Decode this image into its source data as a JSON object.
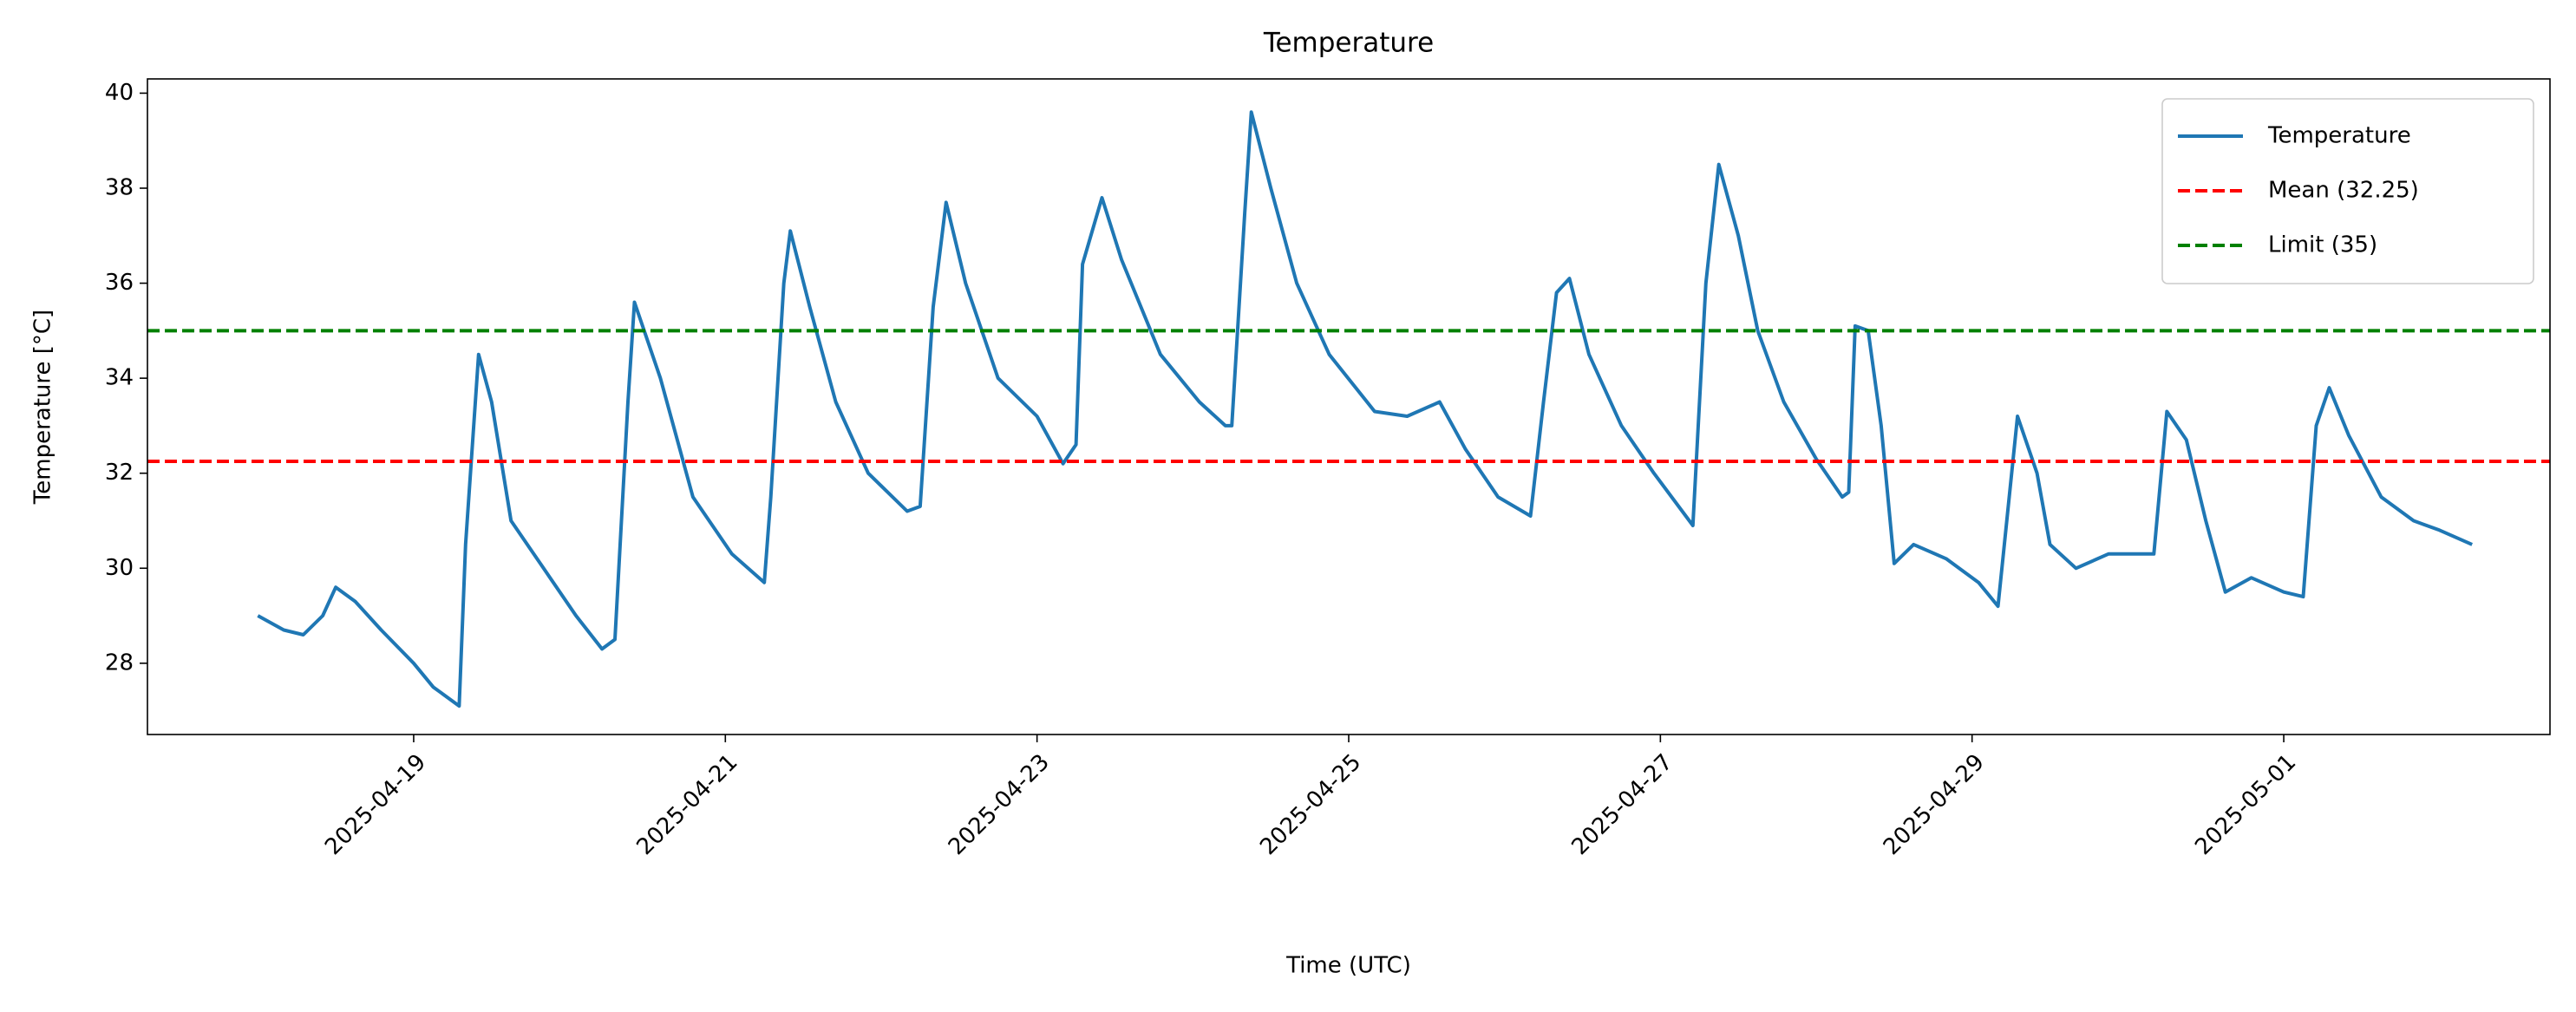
{
  "chart_data": {
    "type": "line",
    "title": "Temperature",
    "x_label": "Time (UTC)",
    "y_label": "Temperature [°C]",
    "x": [
      "2025-04-18T00:00",
      "2025-04-18T04:00",
      "2025-04-18T07:00",
      "2025-04-18T10:00",
      "2025-04-18T12:00",
      "2025-04-18T15:00",
      "2025-04-18T19:00",
      "2025-04-19T00:00",
      "2025-04-19T03:00",
      "2025-04-19T07:00",
      "2025-04-19T08:00",
      "2025-04-19T10:00",
      "2025-04-19T12:00",
      "2025-04-19T15:00",
      "2025-04-19T20:00",
      "2025-04-20T01:00",
      "2025-04-20T05:00",
      "2025-04-20T07:00",
      "2025-04-20T09:00",
      "2025-04-20T10:00",
      "2025-04-20T14:00",
      "2025-04-20T19:00",
      "2025-04-21T01:00",
      "2025-04-21T06:00",
      "2025-04-21T07:00",
      "2025-04-21T09:00",
      "2025-04-21T10:00",
      "2025-04-21T13:00",
      "2025-04-21T17:00",
      "2025-04-21T22:00",
      "2025-04-22T04:00",
      "2025-04-22T06:00",
      "2025-04-22T08:00",
      "2025-04-22T10:00",
      "2025-04-22T13:00",
      "2025-04-22T18:00",
      "2025-04-23T00:00",
      "2025-04-23T04:00",
      "2025-04-23T06:00",
      "2025-04-23T07:00",
      "2025-04-23T10:00",
      "2025-04-23T13:00",
      "2025-04-23T19:00",
      "2025-04-24T01:00",
      "2025-04-24T05:00",
      "2025-04-24T06:00",
      "2025-04-24T08:00",
      "2025-04-24T09:00",
      "2025-04-24T12:00",
      "2025-04-24T16:00",
      "2025-04-24T21:00",
      "2025-04-25T04:00",
      "2025-04-25T09:00",
      "2025-04-25T14:00",
      "2025-04-25T18:00",
      "2025-04-25T23:00",
      "2025-04-26T04:00",
      "2025-04-26T06:00",
      "2025-04-26T08:00",
      "2025-04-26T10:00",
      "2025-04-26T13:00",
      "2025-04-26T18:00",
      "2025-04-26T23:00",
      "2025-04-27T05:00",
      "2025-04-27T07:00",
      "2025-04-27T09:00",
      "2025-04-27T12:00",
      "2025-04-27T15:00",
      "2025-04-27T19:00",
      "2025-04-28T00:00",
      "2025-04-28T04:00",
      "2025-04-28T05:00",
      "2025-04-28T06:00",
      "2025-04-28T08:00",
      "2025-04-28T10:00",
      "2025-04-28T12:00",
      "2025-04-28T15:00",
      "2025-04-28T20:00",
      "2025-04-29T01:00",
      "2025-04-29T04:00",
      "2025-04-29T07:00",
      "2025-04-29T10:00",
      "2025-04-29T12:00",
      "2025-04-29T16:00",
      "2025-04-29T21:00",
      "2025-04-30T04:00",
      "2025-04-30T06:00",
      "2025-04-30T09:00",
      "2025-04-30T12:00",
      "2025-04-30T15:00",
      "2025-04-30T19:00",
      "2025-05-01T00:00",
      "2025-05-01T03:00",
      "2025-05-01T05:00",
      "2025-05-01T07:00",
      "2025-05-01T10:00",
      "2025-05-01T15:00",
      "2025-05-01T20:00",
      "2025-05-02T00:00",
      "2025-05-02T05:00"
    ],
    "series": [
      {
        "name": "Temperature",
        "color": "#1f77b4",
        "values": [
          29.0,
          28.7,
          28.6,
          29.0,
          29.6,
          29.3,
          28.7,
          28.0,
          27.5,
          27.1,
          30.5,
          34.5,
          33.5,
          31.0,
          30.0,
          29.0,
          28.3,
          28.5,
          33.5,
          35.6,
          34.0,
          31.5,
          30.3,
          29.7,
          31.5,
          36.0,
          37.1,
          35.5,
          33.5,
          32.0,
          31.2,
          31.3,
          35.5,
          37.7,
          36.0,
          34.0,
          33.2,
          32.2,
          32.6,
          36.4,
          37.8,
          36.5,
          34.5,
          33.5,
          33.0,
          33.0,
          37.5,
          39.6,
          38.0,
          36.0,
          34.5,
          33.3,
          33.2,
          33.5,
          32.5,
          31.5,
          31.1,
          33.5,
          35.8,
          36.1,
          34.5,
          33.0,
          32.0,
          30.9,
          36.0,
          38.5,
          37.0,
          35.0,
          33.5,
          32.3,
          31.5,
          31.6,
          35.1,
          35.0,
          33.0,
          30.1,
          30.5,
          30.2,
          29.7,
          29.2,
          33.2,
          32.0,
          30.5,
          30.0,
          30.3,
          30.3,
          33.3,
          32.7,
          31.0,
          29.5,
          29.8,
          29.5,
          29.4,
          33.0,
          33.8,
          32.8,
          31.5,
          31.0,
          30.8,
          30.5
        ]
      }
    ],
    "hlines": [
      {
        "name": "Mean (32.25)",
        "value": 32.25,
        "color": "#ff0000"
      },
      {
        "name": "Limit (35)",
        "value": 35,
        "color": "#008000"
      }
    ],
    "xlim": [
      "2025-04-17T07:00",
      "2025-05-02T17:00"
    ],
    "xticks": [
      "2025-04-19",
      "2025-04-21",
      "2025-04-23",
      "2025-04-25",
      "2025-04-27",
      "2025-04-29",
      "2025-05-01"
    ],
    "ylim": [
      26.5,
      40.3
    ],
    "yticks": [
      28,
      30,
      32,
      34,
      36,
      38,
      40
    ],
    "legend": "upper right",
    "grid": false
  }
}
